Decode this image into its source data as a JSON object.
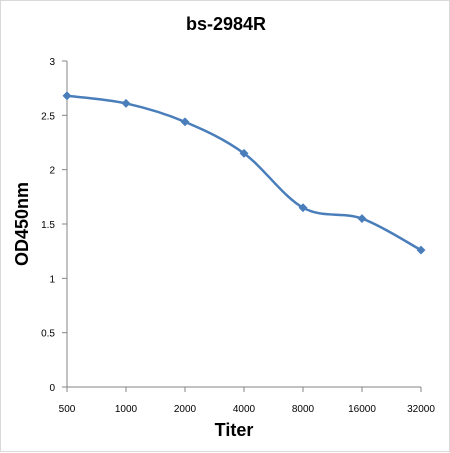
{
  "chart_data": {
    "type": "line",
    "title": "bs-2984R",
    "xlabel": "Titer",
    "ylabel": "OD450nm",
    "categories": [
      "500",
      "1000",
      "2000",
      "4000",
      "8000",
      "16000",
      "32000"
    ],
    "series": [
      {
        "values": [
          2.68,
          2.61,
          2.44,
          2.15,
          1.65,
          1.55,
          1.26
        ],
        "color": "#4a7ebb",
        "marker": "diamond"
      }
    ],
    "ylim": [
      0,
      3
    ],
    "yticks": [
      "0",
      "0.5",
      "1",
      "1.5",
      "2",
      "2.5",
      "3"
    ],
    "grid": false,
    "legend": "none",
    "smooth": true
  }
}
